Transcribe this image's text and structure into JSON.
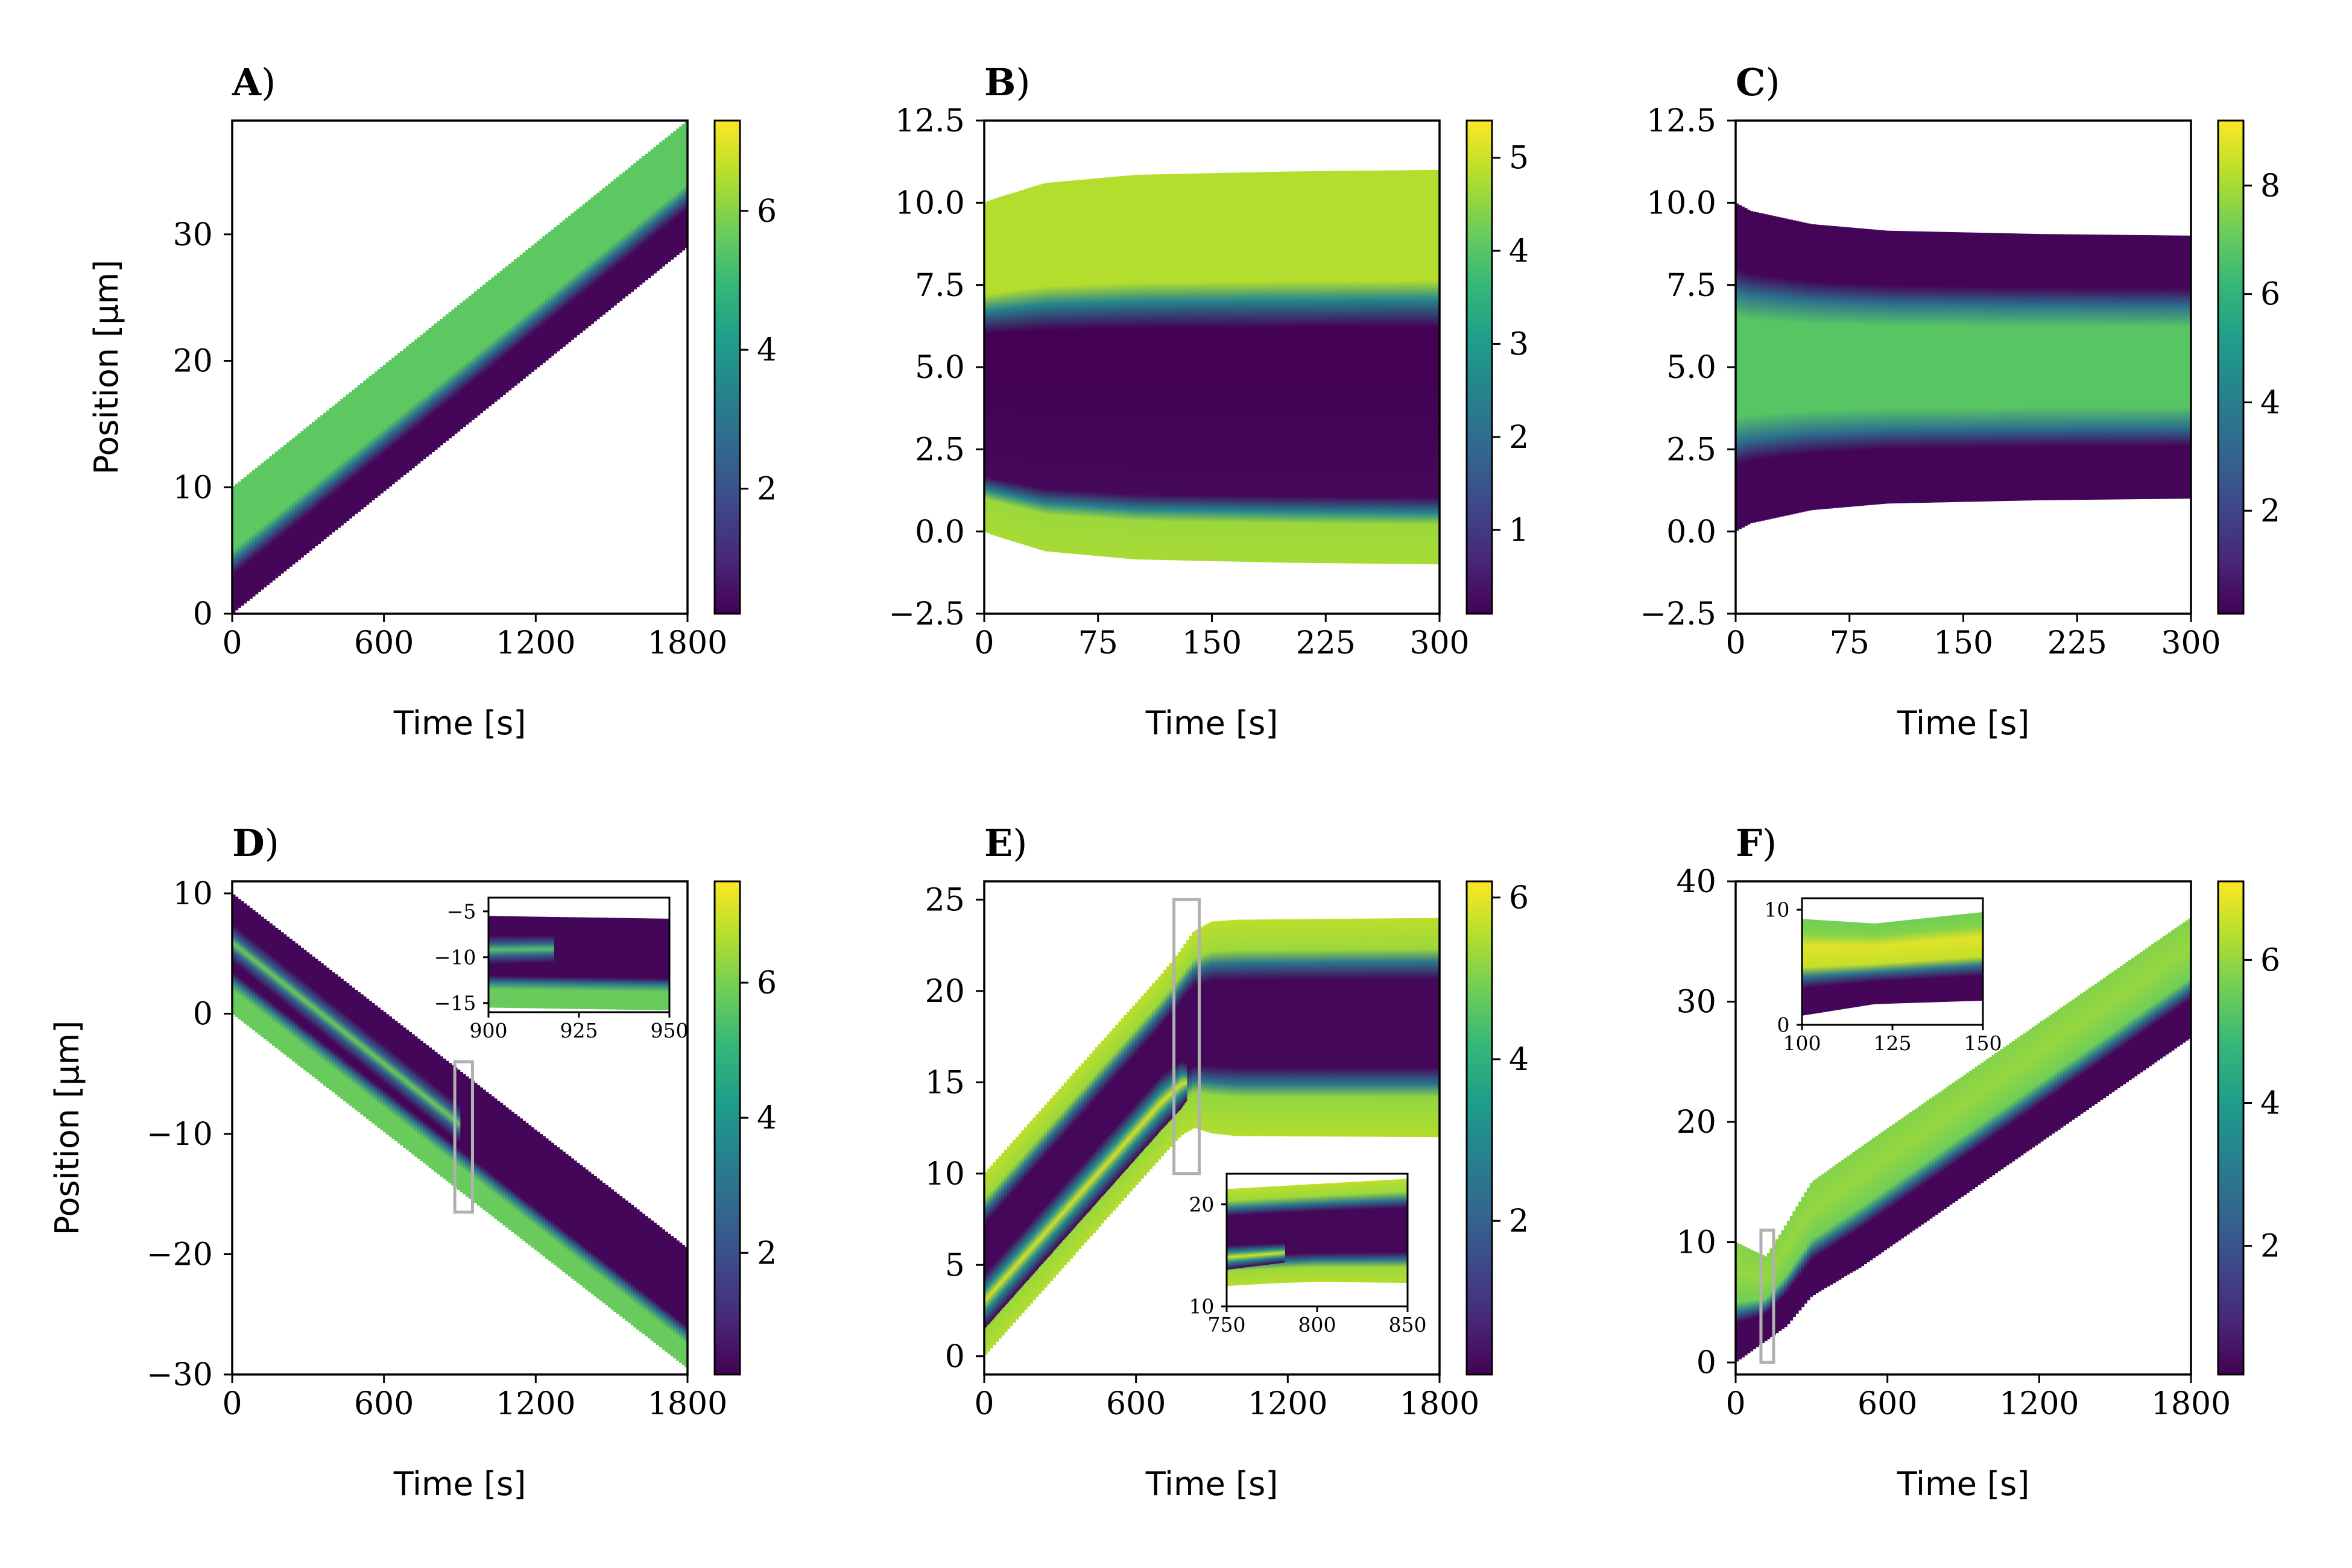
{
  "figure": {
    "colors": {
      "axis": "#000000",
      "inset_box": "#b0b0b0",
      "background": "#ffffff"
    }
  },
  "colormap": {
    "name": "viridis",
    "stops": [
      "#440154",
      "#3b528b",
      "#21918c",
      "#5ec962",
      "#fde725"
    ]
  },
  "chart_data": [
    {
      "id": "A",
      "title": "A)",
      "type": "heatmap",
      "xlabel": "Time [s]",
      "ylabel": "Position [μm]",
      "xlim": [
        0,
        1800
      ],
      "ylim": [
        0,
        39
      ],
      "xticks": [
        0,
        600,
        1200,
        1800
      ],
      "xtick_labels": [
        "0",
        "600",
        "1200",
        "1800"
      ],
      "yticks": [
        0,
        10,
        20,
        30
      ],
      "ytick_labels": [
        "0",
        "10",
        "20",
        "30"
      ],
      "colorbar": {
        "range": [
          0.2,
          7.3
        ],
        "ticks": [
          2,
          4,
          6
        ],
        "tick_labels": [
          "2",
          "4",
          "6"
        ]
      },
      "bands": [
        {
          "t": [
            0,
            1800
          ],
          "lower": [
            0,
            29
          ],
          "upper": [
            10,
            39
          ],
          "stops": [
            [
              0,
              0.3
            ],
            [
              0.3,
              0.3
            ],
            [
              0.42,
              3.0
            ],
            [
              0.5,
              5.5
            ],
            [
              1.0,
              5.5
            ]
          ]
        }
      ]
    },
    {
      "id": "B",
      "title": "B)",
      "type": "heatmap",
      "xlabel": "Time [s]",
      "ylabel": "",
      "xlim": [
        0,
        300
      ],
      "ylim": [
        -2.5,
        12.5
      ],
      "xticks": [
        0,
        75,
        150,
        225,
        300
      ],
      "xtick_labels": [
        "0",
        "75",
        "150",
        "225",
        "300"
      ],
      "yticks": [
        -2.5,
        0.0,
        2.5,
        5.0,
        7.5,
        10.0,
        12.5
      ],
      "ytick_labels": [
        "−2.5",
        "0.0",
        "2.5",
        "5.0",
        "7.5",
        "10.0",
        "12.5"
      ],
      "colorbar": {
        "range": [
          0.1,
          5.4
        ],
        "ticks": [
          1,
          2,
          3,
          4,
          5
        ],
        "tick_labels": [
          "1",
          "2",
          "3",
          "4",
          "5"
        ]
      },
      "bands": [
        {
          "t": [
            0,
            5,
            40,
            100,
            200,
            300
          ],
          "lower": [
            0,
            -0.1,
            -0.6,
            -0.85,
            -0.95,
            -1.0
          ],
          "upper": [
            10,
            10.1,
            10.6,
            10.85,
            10.95,
            11.0
          ],
          "stops": [
            [
              0,
              4.7
            ],
            [
              0.1,
              4.6
            ],
            [
              0.13,
              2.5
            ],
            [
              0.17,
              0.2
            ],
            [
              0.5,
              0.1
            ],
            [
              0.6,
              0.1
            ],
            [
              0.67,
              2.5
            ],
            [
              0.72,
              4.8
            ],
            [
              1.0,
              4.8
            ]
          ]
        }
      ]
    },
    {
      "id": "C",
      "title": "C)",
      "type": "heatmap",
      "xlabel": "Time [s]",
      "ylabel": "",
      "xlim": [
        0,
        300
      ],
      "ylim": [
        -2.5,
        12.5
      ],
      "xticks": [
        0,
        75,
        150,
        225,
        300
      ],
      "xtick_labels": [
        "0",
        "75",
        "150",
        "225",
        "300"
      ],
      "yticks": [
        -2.5,
        0.0,
        2.5,
        5.0,
        7.5,
        10.0,
        12.5
      ],
      "ytick_labels": [
        "−2.5",
        "0.0",
        "2.5",
        "5.0",
        "7.5",
        "10.0",
        "12.5"
      ],
      "colorbar": {
        "range": [
          0.1,
          9.2
        ],
        "ticks": [
          2,
          4,
          6,
          8
        ],
        "tick_labels": [
          "2",
          "4",
          "6",
          "8"
        ]
      },
      "bands": [
        {
          "t": [
            0,
            10,
            50,
            100,
            200,
            300
          ],
          "lower": [
            0,
            0.25,
            0.65,
            0.85,
            0.95,
            1.0
          ],
          "upper": [
            10,
            9.75,
            9.35,
            9.15,
            9.05,
            9.0
          ],
          "stops": [
            [
              0,
              0.2
            ],
            [
              0.2,
              0.2
            ],
            [
              0.27,
              3.5
            ],
            [
              0.35,
              6.8
            ],
            [
              0.65,
              6.8
            ],
            [
              0.73,
              3.5
            ],
            [
              0.8,
              0.2
            ],
            [
              1.0,
              0.2
            ]
          ]
        }
      ]
    },
    {
      "id": "D",
      "title": "D)",
      "type": "heatmap",
      "xlabel": "Time [s]",
      "ylabel": "Position [μm]",
      "xlim": [
        0,
        1800
      ],
      "ylim": [
        -30,
        11
      ],
      "xticks": [
        0,
        600,
        1200,
        1800
      ],
      "xtick_labels": [
        "0",
        "600",
        "1200",
        "1800"
      ],
      "yticks": [
        -30,
        -20,
        -10,
        0,
        10
      ],
      "ytick_labels": [
        "−30",
        "−20",
        "−10",
        "0",
        "10"
      ],
      "colorbar": {
        "range": [
          0.2,
          7.5
        ],
        "ticks": [
          2,
          4,
          6
        ],
        "tick_labels": [
          "2",
          "4",
          "6"
        ]
      },
      "bands": [
        {
          "t": [
            0,
            1800
          ],
          "lower": [
            0,
            -29.5
          ],
          "upper": [
            10,
            -19.5
          ],
          "stops": [
            [
              0,
              5.8
            ],
            [
              0.2,
              5.8
            ],
            [
              0.28,
              3.0
            ],
            [
              0.35,
              0.3
            ],
            [
              1.0,
              0.3
            ]
          ]
        },
        {
          "t": [
            0,
            900
          ],
          "lower": [
            4.3,
            -10.8
          ],
          "upper": [
            7.5,
            -7.6
          ],
          "stops": [
            [
              0,
              0.3
            ],
            [
              0.3,
              2.5
            ],
            [
              0.5,
              5.8
            ],
            [
              0.7,
              2.5
            ],
            [
              1.0,
              0.3
            ]
          ]
        }
      ],
      "highlight": {
        "x": [
          880,
          950
        ],
        "y": [
          -16.5,
          -4
        ]
      },
      "inset": {
        "xlim": [
          900,
          950
        ],
        "ylim": [
          -16,
          -3.5
        ],
        "xticks": [
          900,
          925,
          950
        ],
        "xtick_labels": [
          "900",
          "925",
          "950"
        ],
        "yticks": [
          -15,
          -10,
          -5
        ],
        "ytick_labels": [
          "−15",
          "−10",
          "−5"
        ],
        "bands": [
          {
            "t": [
              900,
              950
            ],
            "lower": [
              -15.5,
              -15.8
            ],
            "upper": [
              -5.5,
              -5.8
            ],
            "stops": [
              [
                0,
                5.8
              ],
              [
                0.2,
                5.8
              ],
              [
                0.28,
                3.0
              ],
              [
                0.35,
                0.3
              ],
              [
                1.0,
                0.3
              ]
            ]
          },
          {
            "t": [
              900,
              918
            ],
            "lower": [
              -10.8,
              -10.6
            ],
            "upper": [
              -7.6,
              -7.6
            ],
            "stops": [
              [
                0,
                0.3
              ],
              [
                0.3,
                2.5
              ],
              [
                0.5,
                5.5
              ],
              [
                0.7,
                2.5
              ],
              [
                1.0,
                0.3
              ]
            ]
          }
        ]
      }
    },
    {
      "id": "E",
      "title": "E)",
      "type": "heatmap",
      "xlabel": "Time [s]",
      "ylabel": "",
      "xlim": [
        0,
        1800
      ],
      "ylim": [
        -1,
        26
      ],
      "xticks": [
        0,
        600,
        1200,
        1800
      ],
      "xtick_labels": [
        "0",
        "600",
        "1200",
        "1800"
      ],
      "yticks": [
        0,
        5,
        10,
        15,
        20,
        25
      ],
      "ytick_labels": [
        "0",
        "5",
        "10",
        "15",
        "20",
        "25"
      ],
      "colorbar": {
        "range": [
          0.1,
          6.2
        ],
        "ticks": [
          2,
          4,
          6
        ],
        "tick_labels": [
          "2",
          "4",
          "6"
        ]
      },
      "bands": [
        {
          "t": [
            0,
            700,
            780,
            830,
            900,
            1000,
            1800
          ],
          "lower": [
            0,
            10.9,
            12.1,
            12.5,
            12.2,
            12.05,
            12
          ],
          "upper": [
            10,
            20.9,
            22.3,
            23.3,
            23.8,
            23.9,
            24
          ],
          "stops": [
            [
              0,
              5.5
            ],
            [
              0.18,
              5.2
            ],
            [
              0.24,
              2.5
            ],
            [
              0.32,
              0.2
            ],
            [
              0.72,
              0.2
            ],
            [
              0.8,
              2.5
            ],
            [
              0.86,
              5.3
            ],
            [
              1.0,
              5.6
            ]
          ]
        },
        {
          "t": [
            0,
            700,
            780,
            800
          ],
          "lower": [
            1.5,
            12.4,
            13.6,
            14.0
          ],
          "upper": [
            4.5,
            15.4,
            16.2,
            16.0
          ],
          "stops": [
            [
              0,
              0.2
            ],
            [
              0.3,
              3.0
            ],
            [
              0.5,
              5.8
            ],
            [
              0.7,
              3.0
            ],
            [
              1.0,
              0.2
            ]
          ]
        }
      ],
      "highlight": {
        "x": [
          750,
          850
        ],
        "y": [
          10,
          25
        ]
      },
      "inset": {
        "xlim": [
          750,
          850
        ],
        "ylim": [
          10,
          23
        ],
        "xticks": [
          750,
          800,
          850
        ],
        "xtick_labels": [
          "750",
          "800",
          "850"
        ],
        "yticks": [
          10,
          20
        ],
        "ytick_labels": [
          "10",
          "20"
        ],
        "bands": [
          {
            "t": [
              750,
              780,
              800,
              850
            ],
            "lower": [
              12.0,
              12.3,
              12.4,
              12.3
            ],
            "upper": [
              21.5,
              21.8,
              22.0,
              22.5
            ],
            "stops": [
              [
                0,
                5.5
              ],
              [
                0.15,
                5.3
              ],
              [
                0.22,
                2.5
              ],
              [
                0.3,
                0.2
              ],
              [
                0.72,
                0.2
              ],
              [
                0.8,
                2.5
              ],
              [
                0.88,
                5.3
              ],
              [
                1.0,
                5.6
              ]
            ]
          },
          {
            "t": [
              750,
              782
            ],
            "lower": [
              13.6,
              14.3
            ],
            "upper": [
              16.0,
              16.2
            ],
            "stops": [
              [
                0,
                0.2
              ],
              [
                0.3,
                3.0
              ],
              [
                0.5,
                5.8
              ],
              [
                0.7,
                3.0
              ],
              [
                1.0,
                0.2
              ]
            ]
          }
        ]
      }
    },
    {
      "id": "F",
      "title": "F)",
      "type": "heatmap",
      "xlabel": "Time [s]",
      "ylabel": "",
      "xlim": [
        0,
        1800
      ],
      "ylim": [
        -1,
        40
      ],
      "xticks": [
        0,
        600,
        1200,
        1800
      ],
      "xtick_labels": [
        "0",
        "600",
        "1200",
        "1800"
      ],
      "yticks": [
        0,
        10,
        20,
        30,
        40
      ],
      "ytick_labels": [
        "0",
        "10",
        "20",
        "30",
        "40"
      ],
      "colorbar": {
        "range": [
          0.2,
          7.1
        ],
        "ticks": [
          2,
          4,
          6
        ],
        "tick_labels": [
          "2",
          "4",
          "6"
        ]
      },
      "bands": [
        {
          "t": [
            0,
            120,
            200,
            300,
            500,
            1800
          ],
          "lower": [
            0,
            1.8,
            3.0,
            5.5,
            8.0,
            27
          ],
          "upper": [
            10,
            8.8,
            11.5,
            15.0,
            18.0,
            37
          ],
          "stops": [
            [
              0,
              0.3
            ],
            [
              0.32,
              0.3
            ],
            [
              0.42,
              3.0
            ],
            [
              0.5,
              5.6
            ],
            [
              0.75,
              6.0
            ],
            [
              1.0,
              5.8
            ]
          ]
        }
      ],
      "highlight": {
        "x": [
          100,
          150
        ],
        "y": [
          0,
          11
        ]
      },
      "inset": {
        "xlim": [
          100,
          150
        ],
        "ylim": [
          0,
          11
        ],
        "xticks": [
          100,
          125,
          150
        ],
        "xtick_labels": [
          "100",
          "125",
          "150"
        ],
        "yticks": [
          0,
          10
        ],
        "ytick_labels": [
          "0",
          "10"
        ],
        "bands": [
          {
            "t": [
              100,
              120,
              150
            ],
            "lower": [
              0.8,
              1.8,
              2.1
            ],
            "upper": [
              9.2,
              8.8,
              9.8
            ],
            "stops": [
              [
                0,
                0.3
              ],
              [
                0.28,
                0.3
              ],
              [
                0.4,
                3.0
              ],
              [
                0.5,
                6.5
              ],
              [
                0.72,
                6.8
              ],
              [
                0.85,
                5.8
              ],
              [
                1.0,
                5.6
              ]
            ]
          }
        ]
      }
    }
  ]
}
